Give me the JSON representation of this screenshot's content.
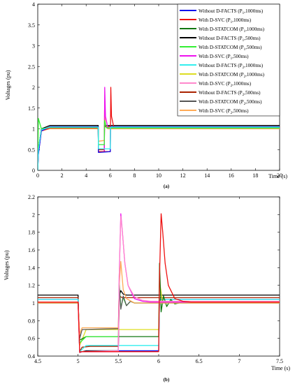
{
  "colors": {
    "blue": "#1010ee",
    "red": "#ee1111",
    "darkgreen": "#117711",
    "black": "#000000",
    "lime": "#33ee33",
    "magenta": "#ee11ee",
    "cyan": "#33eeee",
    "gold": "#dddd22",
    "pink": "#ff88cc",
    "darkred": "#aa2200",
    "gray": "#555555",
    "orange": "#ffaa55"
  },
  "chart_data": [
    {
      "type": "line",
      "panel": "(a)",
      "xlabel": "Time (s)",
      "ylabel": "Voltages (pu)",
      "xlim": [
        0,
        20
      ],
      "ylim": [
        0,
        4
      ],
      "xticks": [
        "0",
        "2",
        "4",
        "6",
        "8",
        "10",
        "12",
        "14",
        "16",
        "18",
        "20"
      ],
      "yticks": [
        "0",
        "0.5",
        "1",
        "1.5",
        "2",
        "2.5",
        "3",
        "3.5",
        "4"
      ],
      "legend_position": "top-right",
      "legend": [
        {
          "pre": "Without D-FACTS (P",
          "sub": "1",
          "post": ",1000ms)",
          "color": "blue"
        },
        {
          "pre": "With D-SVC (P",
          "sub": "1",
          "post": ",1000ms)",
          "color": "red"
        },
        {
          "pre": "With D-STATCOM (P",
          "sub": "1",
          "post": ",1000ms)",
          "color": "darkgreen"
        },
        {
          "pre": "Without D-FACTS (P",
          "sub": "1",
          "post": ",500ms)",
          "color": "black"
        },
        {
          "pre": "With D-STATCOM (P",
          "sub": "1",
          "post": ",500ms)",
          "color": "lime"
        },
        {
          "pre": "With D-SVC (P",
          "sub": "1",
          "post": ",500ms)",
          "color": "magenta"
        },
        {
          "pre": "Without D-FACTS (P",
          "sub": "2",
          "post": ",1000ms)",
          "color": "cyan"
        },
        {
          "pre": "With D-STATCOM (P",
          "sub": "2",
          "post": ",1000ms)",
          "color": "gold"
        },
        {
          "pre": "With D-SVC (P",
          "sub": "2",
          "post": ",1000ms)",
          "color": "pink"
        },
        {
          "pre": "Without D-FACTS (P",
          "sub": "2",
          "post": ",500ms)",
          "color": "darkred"
        },
        {
          "pre": "With D-STATCOM (P",
          "sub": "2",
          "post": ",500ms)",
          "color": "gray"
        },
        {
          "pre": "With D-SVC (P",
          "sub": "2",
          "post": ",500ms)",
          "color": "orange"
        }
      ],
      "series": [
        {
          "color": "black",
          "x": [
            0,
            0.05,
            0.3,
            1,
            5,
            5.02,
            5.5,
            5.52,
            20
          ],
          "y": [
            0,
            0.5,
            1.0,
            1.08,
            1.08,
            0.45,
            0.45,
            1.08,
            1.08
          ]
        },
        {
          "color": "darkred",
          "x": [
            0,
            0.05,
            0.3,
            1,
            5,
            5.02,
            5.5,
            5.52,
            20
          ],
          "y": [
            0,
            0.5,
            0.98,
            1.05,
            1.05,
            0.5,
            0.5,
            1.05,
            1.05
          ]
        },
        {
          "color": "orange",
          "x": [
            0,
            0.05,
            0.3,
            1,
            5,
            5.02,
            5.5,
            5.52,
            5.6,
            5.8,
            20
          ],
          "y": [
            0,
            0.45,
            0.95,
            1.0,
            1.0,
            0.7,
            0.72,
            1.45,
            1.1,
            1.0,
            1.0
          ]
        },
        {
          "color": "magenta",
          "x": [
            0,
            0.05,
            0.3,
            1,
            5,
            5.02,
            5.5,
            5.54,
            5.6,
            5.8,
            20
          ],
          "y": [
            0,
            0.4,
            0.95,
            1.02,
            1.02,
            0.45,
            0.45,
            2.0,
            1.3,
            1.02,
            1.02
          ]
        },
        {
          "color": "red",
          "x": [
            0,
            0.05,
            0.3,
            1,
            5,
            5.02,
            6,
            6.04,
            6.1,
            6.3,
            20
          ],
          "y": [
            0,
            0.4,
            0.95,
            1.02,
            1.02,
            0.45,
            0.45,
            2.0,
            1.3,
            1.02,
            1.02
          ]
        },
        {
          "color": "blue",
          "x": [
            0,
            0.05,
            0.3,
            1,
            5,
            5.02,
            6,
            6.02,
            20
          ],
          "y": [
            0,
            0.38,
            0.95,
            1.05,
            1.05,
            0.43,
            0.45,
            1.05,
            1.05
          ]
        },
        {
          "color": "lime",
          "x": [
            0,
            0.05,
            0.3,
            1,
            5,
            5.02,
            5.5,
            5.52,
            5.7,
            20
          ],
          "y": [
            0,
            1.25,
            1.0,
            1.03,
            1.03,
            0.62,
            0.62,
            1.2,
            1.02,
            1.02
          ]
        },
        {
          "color": "cyan",
          "x": [
            0,
            0.05,
            0.3,
            1,
            5,
            5.02,
            6,
            6.02,
            20
          ],
          "y": [
            0,
            0.5,
            0.98,
            1.04,
            1.04,
            0.52,
            0.52,
            1.04,
            1.04
          ]
        }
      ]
    },
    {
      "type": "line",
      "panel": "(b)",
      "xlabel": "Time (s)",
      "ylabel": "Voltages (pu)",
      "xlim": [
        4.5,
        7.5
      ],
      "ylim": [
        0.4,
        2.2
      ],
      "xticks": [
        "4.5",
        "5",
        "5.5",
        "6",
        "6.5",
        "7",
        "7.5"
      ],
      "yticks": [
        "0.4",
        "0.6",
        "0.8",
        "1",
        "1.2",
        "1.4",
        "1.6",
        "1.8",
        "2",
        "2.2"
      ],
      "series": [
        {
          "color": "black",
          "x": [
            4.5,
            5.0,
            5.02,
            5.05,
            5.1,
            5.5,
            5.51,
            5.53,
            5.56,
            5.6,
            7.5
          ],
          "y": [
            1.09,
            1.09,
            0.45,
            0.45,
            0.46,
            0.46,
            1.08,
            1.14,
            1.1,
            1.09,
            1.09
          ]
        },
        {
          "color": "darkred",
          "x": [
            4.5,
            5.0,
            5.02,
            5.05,
            5.15,
            5.5,
            5.51,
            5.55,
            5.6,
            7.5
          ],
          "y": [
            1.06,
            1.06,
            0.45,
            0.5,
            0.51,
            0.51,
            1.08,
            1.06,
            1.06,
            1.06
          ]
        },
        {
          "color": "blue",
          "x": [
            4.5,
            5.0,
            5.02,
            5.05,
            5.5,
            5.8,
            6.0,
            6.01,
            6.05,
            6.1,
            7.5
          ],
          "y": [
            1.04,
            1.04,
            0.44,
            0.45,
            0.46,
            0.46,
            0.46,
            1.04,
            1.04,
            1.04,
            1.04
          ]
        },
        {
          "color": "cyan",
          "x": [
            4.5,
            5.0,
            5.02,
            5.1,
            5.5,
            6.0,
            6.01,
            6.05,
            7.5
          ],
          "y": [
            1.04,
            1.04,
            0.45,
            0.52,
            0.52,
            0.52,
            1.05,
            1.04,
            1.04
          ]
        },
        {
          "color": "gold",
          "x": [
            4.5,
            5.0,
            5.02,
            5.1,
            6.0,
            6.01,
            6.05,
            6.1,
            6.2,
            7.5
          ],
          "y": [
            1.01,
            1.01,
            0.52,
            0.7,
            0.7,
            1.25,
            1.0,
            1.02,
            1.01,
            1.01
          ]
        },
        {
          "color": "darkgreen",
          "x": [
            4.5,
            5.0,
            5.02,
            5.1,
            6.0,
            6.01,
            6.03,
            6.06,
            6.1,
            6.15,
            6.2,
            6.3,
            7.5
          ],
          "y": [
            1.0,
            1.0,
            0.58,
            0.62,
            0.62,
            1.45,
            0.9,
            1.08,
            0.96,
            1.04,
            0.99,
            1.01,
            1.0
          ]
        },
        {
          "color": "lime",
          "x": [
            4.5,
            5.0,
            5.02,
            5.1,
            5.5,
            5.51,
            5.53,
            5.56,
            5.6,
            5.65,
            5.7,
            5.8,
            7.5
          ],
          "y": [
            1.0,
            1.0,
            0.55,
            0.62,
            0.62,
            1.22,
            0.95,
            1.06,
            0.97,
            1.02,
            1.0,
            1.0,
            1.0
          ]
        },
        {
          "color": "gray",
          "x": [
            4.5,
            5.0,
            5.02,
            5.05,
            5.5,
            5.51,
            5.53,
            5.56,
            5.6,
            5.65,
            5.7,
            7.5
          ],
          "y": [
            1.0,
            1.0,
            0.6,
            0.7,
            0.71,
            1.2,
            0.93,
            1.08,
            0.97,
            1.02,
            1.0,
            1.0
          ]
        },
        {
          "color": "orange",
          "x": [
            4.5,
            5.0,
            5.02,
            5.05,
            5.5,
            5.51,
            5.53,
            5.56,
            5.6,
            5.7,
            5.8,
            7.5
          ],
          "y": [
            1.0,
            1.0,
            0.65,
            0.72,
            0.72,
            1.2,
            1.47,
            1.15,
            1.05,
            1.0,
            1.0,
            1.0
          ]
        },
        {
          "color": "magenta",
          "x": [
            4.5,
            5.0,
            5.02,
            5.04,
            5.5,
            5.51,
            5.53,
            5.55,
            5.58,
            5.62,
            5.7,
            5.8,
            5.9,
            7.5
          ],
          "y": [
            1.01,
            1.01,
            0.44,
            0.45,
            0.45,
            1.3,
            2.01,
            1.8,
            1.45,
            1.2,
            1.05,
            1.02,
            1.01,
            1.01
          ]
        },
        {
          "color": "pink",
          "x": [
            4.5,
            5.0,
            5.02,
            5.04,
            5.5,
            5.51,
            5.53,
            5.55,
            5.58,
            5.62,
            5.7,
            5.8,
            5.9,
            6.0,
            7.5
          ],
          "y": [
            1.01,
            1.01,
            0.44,
            0.45,
            0.46,
            1.3,
            1.98,
            1.8,
            1.45,
            1.2,
            1.07,
            1.03,
            1.02,
            1.02,
            1.02
          ]
        },
        {
          "color": "red",
          "x": [
            4.5,
            5.0,
            5.02,
            5.04,
            5.5,
            6.0,
            6.01,
            6.03,
            6.05,
            6.08,
            6.12,
            6.2,
            6.3,
            6.4,
            7.5
          ],
          "y": [
            1.01,
            1.01,
            0.44,
            0.45,
            0.45,
            0.45,
            1.3,
            2.01,
            1.8,
            1.45,
            1.2,
            1.05,
            1.02,
            1.01,
            1.01
          ]
        }
      ]
    }
  ]
}
